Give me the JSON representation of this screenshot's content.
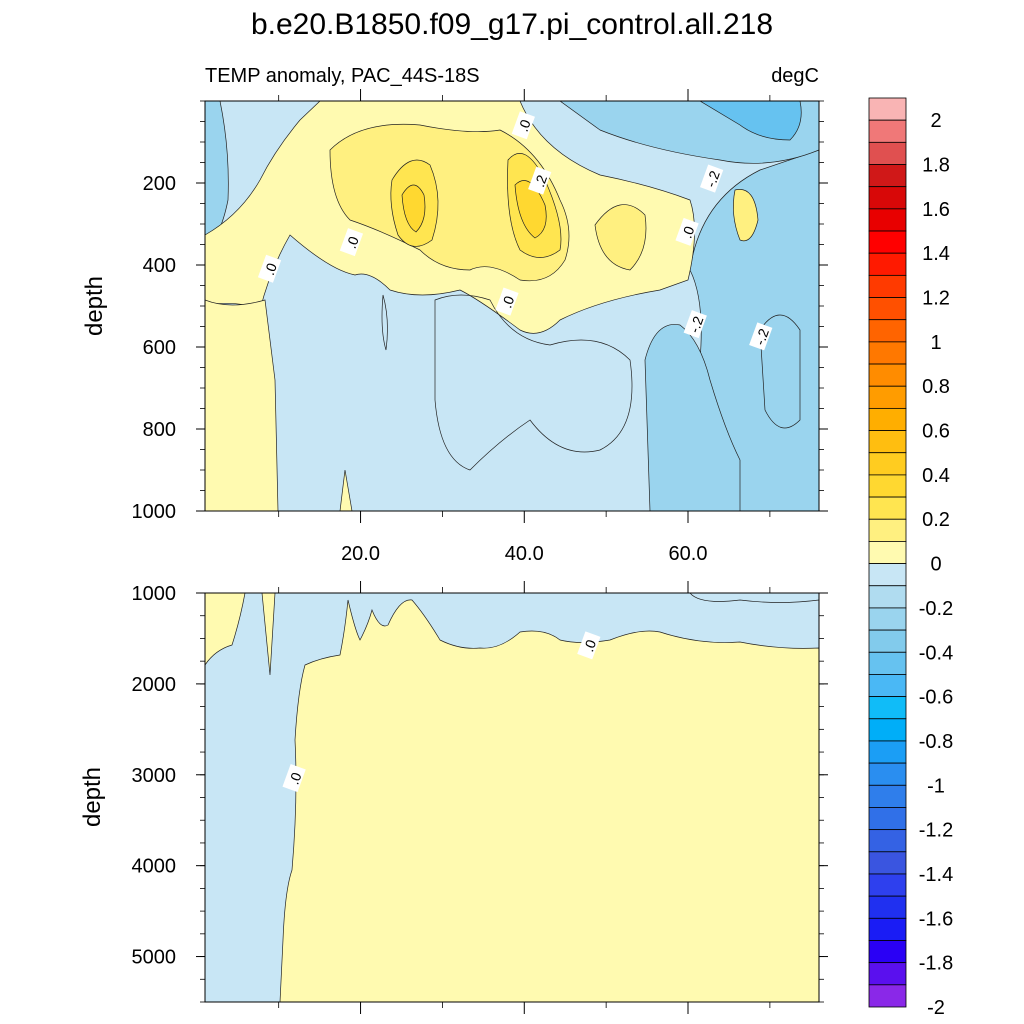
{
  "chart_data": {
    "type": "contour",
    "title": "b.e20.B1850.f09_g17.pi_control.all.218",
    "subtitle_left": "TEMP anomaly, PAC_44S-18S",
    "subtitle_right": "degC",
    "xlim": [
      1,
      76
    ],
    "x_ticks": [
      20,
      40,
      60
    ],
    "x_tick_labels": [
      "20.0",
      "40.0",
      "60.0"
    ],
    "panels": [
      {
        "name": "upper",
        "ylabel": "depth",
        "ylim": [
          0,
          1000
        ],
        "y_ticks": [
          200,
          400,
          600,
          800,
          1000
        ],
        "y_tick_labels": [
          "200",
          "400",
          "600",
          "800",
          "1000"
        ],
        "contour_labels": [
          {
            "text": ".0",
            "x": 40,
            "y": 60
          },
          {
            "text": ".2",
            "x": 42,
            "y": 195
          },
          {
            "text": "-.2",
            "x": 63,
            "y": 190
          },
          {
            "text": ".0",
            "x": 60,
            "y": 320
          },
          {
            "text": ".0",
            "x": 19,
            "y": 345
          },
          {
            "text": ".0",
            "x": 9,
            "y": 410
          },
          {
            "text": ".0",
            "x": 38,
            "y": 490
          },
          {
            "text": "-.2",
            "x": 61,
            "y": 545
          },
          {
            "text": "-.2",
            "x": 69,
            "y": 575
          }
        ]
      },
      {
        "name": "lower",
        "ylabel": "depth",
        "ylim": [
          1000,
          5500
        ],
        "y_ticks": [
          1000,
          2000,
          3000,
          4000,
          5000
        ],
        "y_tick_labels": [
          "1000",
          "2000",
          "3000",
          "4000",
          "5000"
        ],
        "contour_labels": [
          {
            "text": ".0",
            "x": 48,
            "y": 1580
          },
          {
            "text": ".0",
            "x": 12,
            "y": 3040
          }
        ]
      }
    ],
    "colorbar": {
      "levels": [
        -2.1,
        -2,
        -1.9,
        -1.8,
        -1.7,
        -1.6,
        -1.5,
        -1.4,
        -1.3,
        -1.2,
        -1.1,
        -1,
        -0.9,
        -0.8,
        -0.7,
        -0.6,
        -0.5,
        -0.4,
        -0.3,
        -0.2,
        -0.1,
        0,
        0.1,
        0.2,
        0.3,
        0.4,
        0.5,
        0.6,
        0.7,
        0.8,
        0.9,
        1,
        1.1,
        1.2,
        1.3,
        1.4,
        1.5,
        1.6,
        1.7,
        1.8,
        1.9,
        2,
        2.1
      ],
      "labels": [
        "2",
        "1.8",
        "1.6",
        "1.4",
        "1.2",
        "1",
        "0.8",
        "0.6",
        "0.4",
        "0.2",
        "0",
        "-0.2",
        "-0.4",
        "-0.6",
        "-0.8",
        "-1",
        "-1.2",
        "-1.4",
        "-1.6",
        "-1.8",
        "-2"
      ],
      "colors_top_to_bottom": [
        "#f9b4b4",
        "#f07878",
        "#e05050",
        "#d01818",
        "#d80808",
        "#e80000",
        "#ff0000",
        "#ff1a00",
        "#ff3a00",
        "#ff5000",
        "#ff6400",
        "#ff7800",
        "#ff8c00",
        "#ff9c00",
        "#ffae00",
        "#ffbe10",
        "#ffcc20",
        "#ffd830",
        "#ffe550",
        "#fff080",
        "#fffab0",
        "#c8e6f5",
        "#b0dcf0",
        "#9ad4ee",
        "#82cbec",
        "#66c2f0",
        "#4ab8f5",
        "#10bcf8",
        "#00aef8",
        "#1b9ef5",
        "#2a8ef0",
        "#2f7eeb",
        "#3070e8",
        "#3462e4",
        "#3a55e0",
        "#2e40ee",
        "#2030f0",
        "#1a1cf5",
        "#2a00f5",
        "#5a10ee",
        "#8a28e8"
      ]
    },
    "fill_colors": {
      "neg_02": "#c8e6f5",
      "neg_04": "#9ad4ee",
      "neg_06": "#66c2f0",
      "pos_01": "#fffab0",
      "pos_02": "#fff080",
      "pos_03": "#ffe550",
      "pos_04": "#ffd830"
    }
  }
}
